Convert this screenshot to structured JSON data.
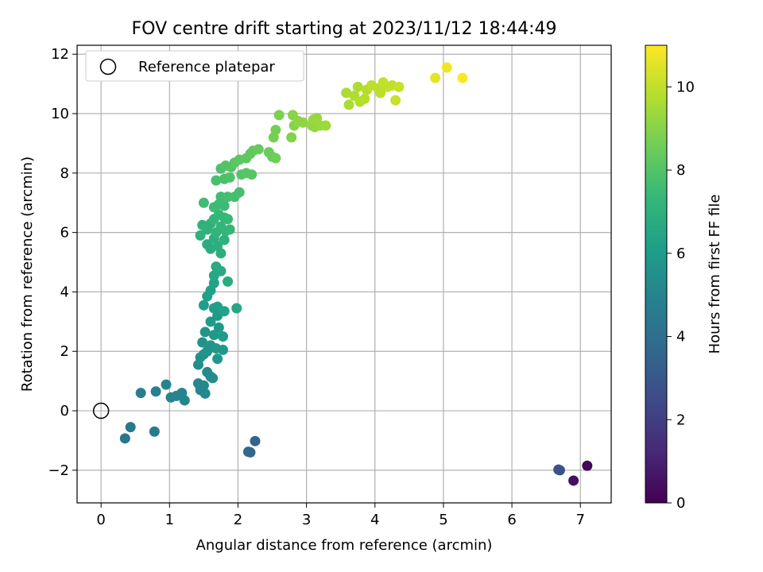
{
  "chart_data": {
    "type": "scatter",
    "title": "FOV centre drift starting at 2023/11/12 18:44:49",
    "xlabel": "Angular distance from reference (arcmin)",
    "ylabel": "Rotation from reference (arcmin)",
    "colorbar_label": "Hours from first FF file",
    "xlim": [
      -0.35,
      7.45
    ],
    "ylim": [
      -3.1,
      12.3
    ],
    "x_ticks": [
      0,
      1,
      2,
      3,
      4,
      5,
      6,
      7
    ],
    "y_ticks": [
      -2,
      0,
      2,
      4,
      6,
      8,
      10,
      12
    ],
    "y_tick_labels": [
      "−2",
      "0",
      "2",
      "4",
      "6",
      "8",
      "10",
      "12"
    ],
    "colorbar_range": [
      0,
      11
    ],
    "colorbar_ticks": [
      0,
      2,
      4,
      6,
      8,
      10
    ],
    "colormap": "viridis",
    "grid": true,
    "legend": {
      "position": "top-left",
      "entries": [
        "Reference platepar"
      ]
    },
    "reference_point": {
      "x": 0,
      "y": 0,
      "label": "Reference platepar"
    },
    "series": [
      {
        "points": [
          [
            7.1,
            -1.85,
            0.2
          ],
          [
            6.9,
            -2.35,
            0.4
          ],
          [
            6.7,
            -2.0,
            2.6
          ],
          [
            6.68,
            -1.98,
            2.8
          ],
          [
            2.25,
            -1.02,
            3.5
          ],
          [
            2.18,
            -1.4,
            3.6
          ],
          [
            2.15,
            -1.38,
            3.7
          ],
          [
            0.35,
            -0.93,
            4.3
          ],
          [
            0.43,
            -0.55,
            4.4
          ],
          [
            0.78,
            -0.7,
            4.5
          ],
          [
            0.58,
            0.6,
            4.7
          ],
          [
            0.8,
            0.65,
            4.8
          ],
          [
            0.95,
            0.88,
            4.9
          ],
          [
            1.02,
            0.45,
            4.9
          ],
          [
            1.1,
            0.5,
            5.0
          ],
          [
            1.18,
            0.6,
            5.0
          ],
          [
            1.22,
            0.35,
            5.0
          ],
          [
            1.42,
            0.92,
            5.1
          ],
          [
            1.45,
            0.7,
            5.1
          ],
          [
            1.5,
            0.85,
            5.2
          ],
          [
            1.52,
            0.58,
            5.2
          ],
          [
            1.6,
            1.15,
            5.3
          ],
          [
            1.63,
            1.1,
            5.3
          ],
          [
            1.55,
            1.3,
            5.3
          ],
          [
            1.42,
            1.55,
            5.4
          ],
          [
            1.45,
            1.8,
            5.5
          ],
          [
            1.5,
            1.9,
            5.5
          ],
          [
            1.55,
            2.0,
            5.6
          ],
          [
            1.48,
            2.3,
            5.6
          ],
          [
            1.52,
            2.65,
            5.7
          ],
          [
            1.6,
            2.2,
            5.7
          ],
          [
            1.68,
            2.1,
            5.8
          ],
          [
            1.7,
            1.75,
            5.8
          ],
          [
            1.78,
            2.05,
            5.8
          ],
          [
            1.65,
            2.55,
            5.9
          ],
          [
            1.72,
            2.8,
            5.9
          ],
          [
            1.78,
            2.5,
            6.0
          ],
          [
            1.6,
            3.0,
            6.0
          ],
          [
            1.7,
            3.2,
            6.0
          ],
          [
            1.65,
            3.45,
            6.1
          ],
          [
            1.5,
            3.55,
            6.1
          ],
          [
            1.55,
            3.85,
            6.2
          ],
          [
            1.6,
            4.05,
            6.2
          ],
          [
            1.65,
            4.3,
            6.3
          ],
          [
            1.7,
            3.5,
            6.2
          ],
          [
            1.8,
            3.35,
            6.3
          ],
          [
            1.98,
            3.45,
            6.5
          ],
          [
            1.65,
            4.55,
            6.5
          ],
          [
            1.68,
            4.85,
            6.6
          ],
          [
            1.75,
            4.7,
            6.6
          ],
          [
            1.85,
            4.35,
            6.7
          ],
          [
            1.55,
            5.6,
            6.8
          ],
          [
            1.6,
            5.45,
            6.8
          ],
          [
            1.65,
            5.8,
            6.9
          ],
          [
            1.7,
            5.55,
            6.9
          ],
          [
            1.75,
            5.3,
            6.9
          ],
          [
            1.8,
            5.75,
            7.0
          ],
          [
            1.45,
            5.9,
            7.0
          ],
          [
            1.48,
            6.25,
            7.1
          ],
          [
            1.55,
            6.1,
            7.1
          ],
          [
            1.6,
            6.3,
            7.1
          ],
          [
            1.68,
            6.0,
            7.2
          ],
          [
            1.75,
            6.2,
            7.2
          ],
          [
            1.82,
            6.05,
            7.2
          ],
          [
            1.88,
            6.1,
            7.3
          ],
          [
            1.65,
            6.45,
            7.3
          ],
          [
            1.72,
            6.6,
            7.3
          ],
          [
            1.8,
            6.5,
            7.4
          ],
          [
            1.85,
            6.45,
            7.4
          ],
          [
            1.65,
            6.85,
            7.5
          ],
          [
            1.72,
            6.95,
            7.5
          ],
          [
            1.8,
            6.9,
            7.5
          ],
          [
            1.5,
            7.0,
            7.6
          ],
          [
            1.75,
            7.2,
            7.6
          ],
          [
            1.85,
            7.2,
            7.7
          ],
          [
            1.95,
            7.2,
            7.7
          ],
          [
            2.02,
            7.35,
            7.7
          ],
          [
            1.68,
            7.75,
            7.8
          ],
          [
            1.8,
            7.8,
            7.8
          ],
          [
            1.88,
            7.85,
            7.9
          ],
          [
            1.75,
            8.15,
            7.9
          ],
          [
            1.82,
            8.25,
            8.0
          ],
          [
            1.9,
            8.2,
            8.0
          ],
          [
            2.05,
            7.95,
            8.0
          ],
          [
            2.12,
            8.0,
            8.1
          ],
          [
            2.2,
            7.95,
            8.1
          ],
          [
            1.95,
            8.35,
            8.1
          ],
          [
            2.02,
            8.45,
            8.2
          ],
          [
            2.12,
            8.5,
            8.2
          ],
          [
            2.18,
            8.65,
            8.3
          ],
          [
            2.22,
            8.75,
            8.3
          ],
          [
            2.3,
            8.8,
            8.4
          ],
          [
            2.45,
            8.7,
            8.5
          ],
          [
            2.5,
            8.55,
            8.5
          ],
          [
            2.55,
            8.5,
            8.6
          ],
          [
            2.52,
            9.2,
            8.7
          ],
          [
            2.55,
            9.45,
            8.7
          ],
          [
            2.6,
            9.95,
            8.8
          ],
          [
            2.78,
            9.2,
            8.9
          ],
          [
            2.82,
            9.6,
            9.0
          ],
          [
            2.8,
            9.95,
            9.0
          ],
          [
            2.88,
            9.75,
            9.1
          ],
          [
            2.95,
            9.7,
            9.1
          ],
          [
            3.08,
            9.6,
            9.2
          ],
          [
            3.12,
            9.55,
            9.2
          ],
          [
            3.15,
            9.85,
            9.3
          ],
          [
            3.2,
            9.6,
            9.3
          ],
          [
            3.28,
            9.6,
            9.4
          ],
          [
            3.1,
            9.8,
            9.3
          ],
          [
            3.58,
            10.7,
            9.6
          ],
          [
            3.62,
            10.3,
            9.6
          ],
          [
            3.7,
            10.6,
            9.7
          ],
          [
            3.75,
            10.9,
            9.7
          ],
          [
            3.78,
            10.4,
            9.8
          ],
          [
            3.85,
            10.5,
            9.8
          ],
          [
            3.88,
            10.8,
            9.8
          ],
          [
            3.95,
            10.95,
            9.9
          ],
          [
            4.05,
            10.85,
            9.9
          ],
          [
            4.08,
            10.7,
            9.9
          ],
          [
            4.12,
            11.05,
            10.0
          ],
          [
            4.18,
            10.9,
            10.0
          ],
          [
            4.25,
            10.95,
            10.0
          ],
          [
            4.3,
            10.45,
            10.1
          ],
          [
            4.35,
            10.9,
            10.1
          ],
          [
            4.88,
            11.2,
            10.6
          ],
          [
            5.05,
            11.55,
            10.8
          ],
          [
            5.28,
            11.2,
            11.0
          ]
        ]
      }
    ]
  }
}
